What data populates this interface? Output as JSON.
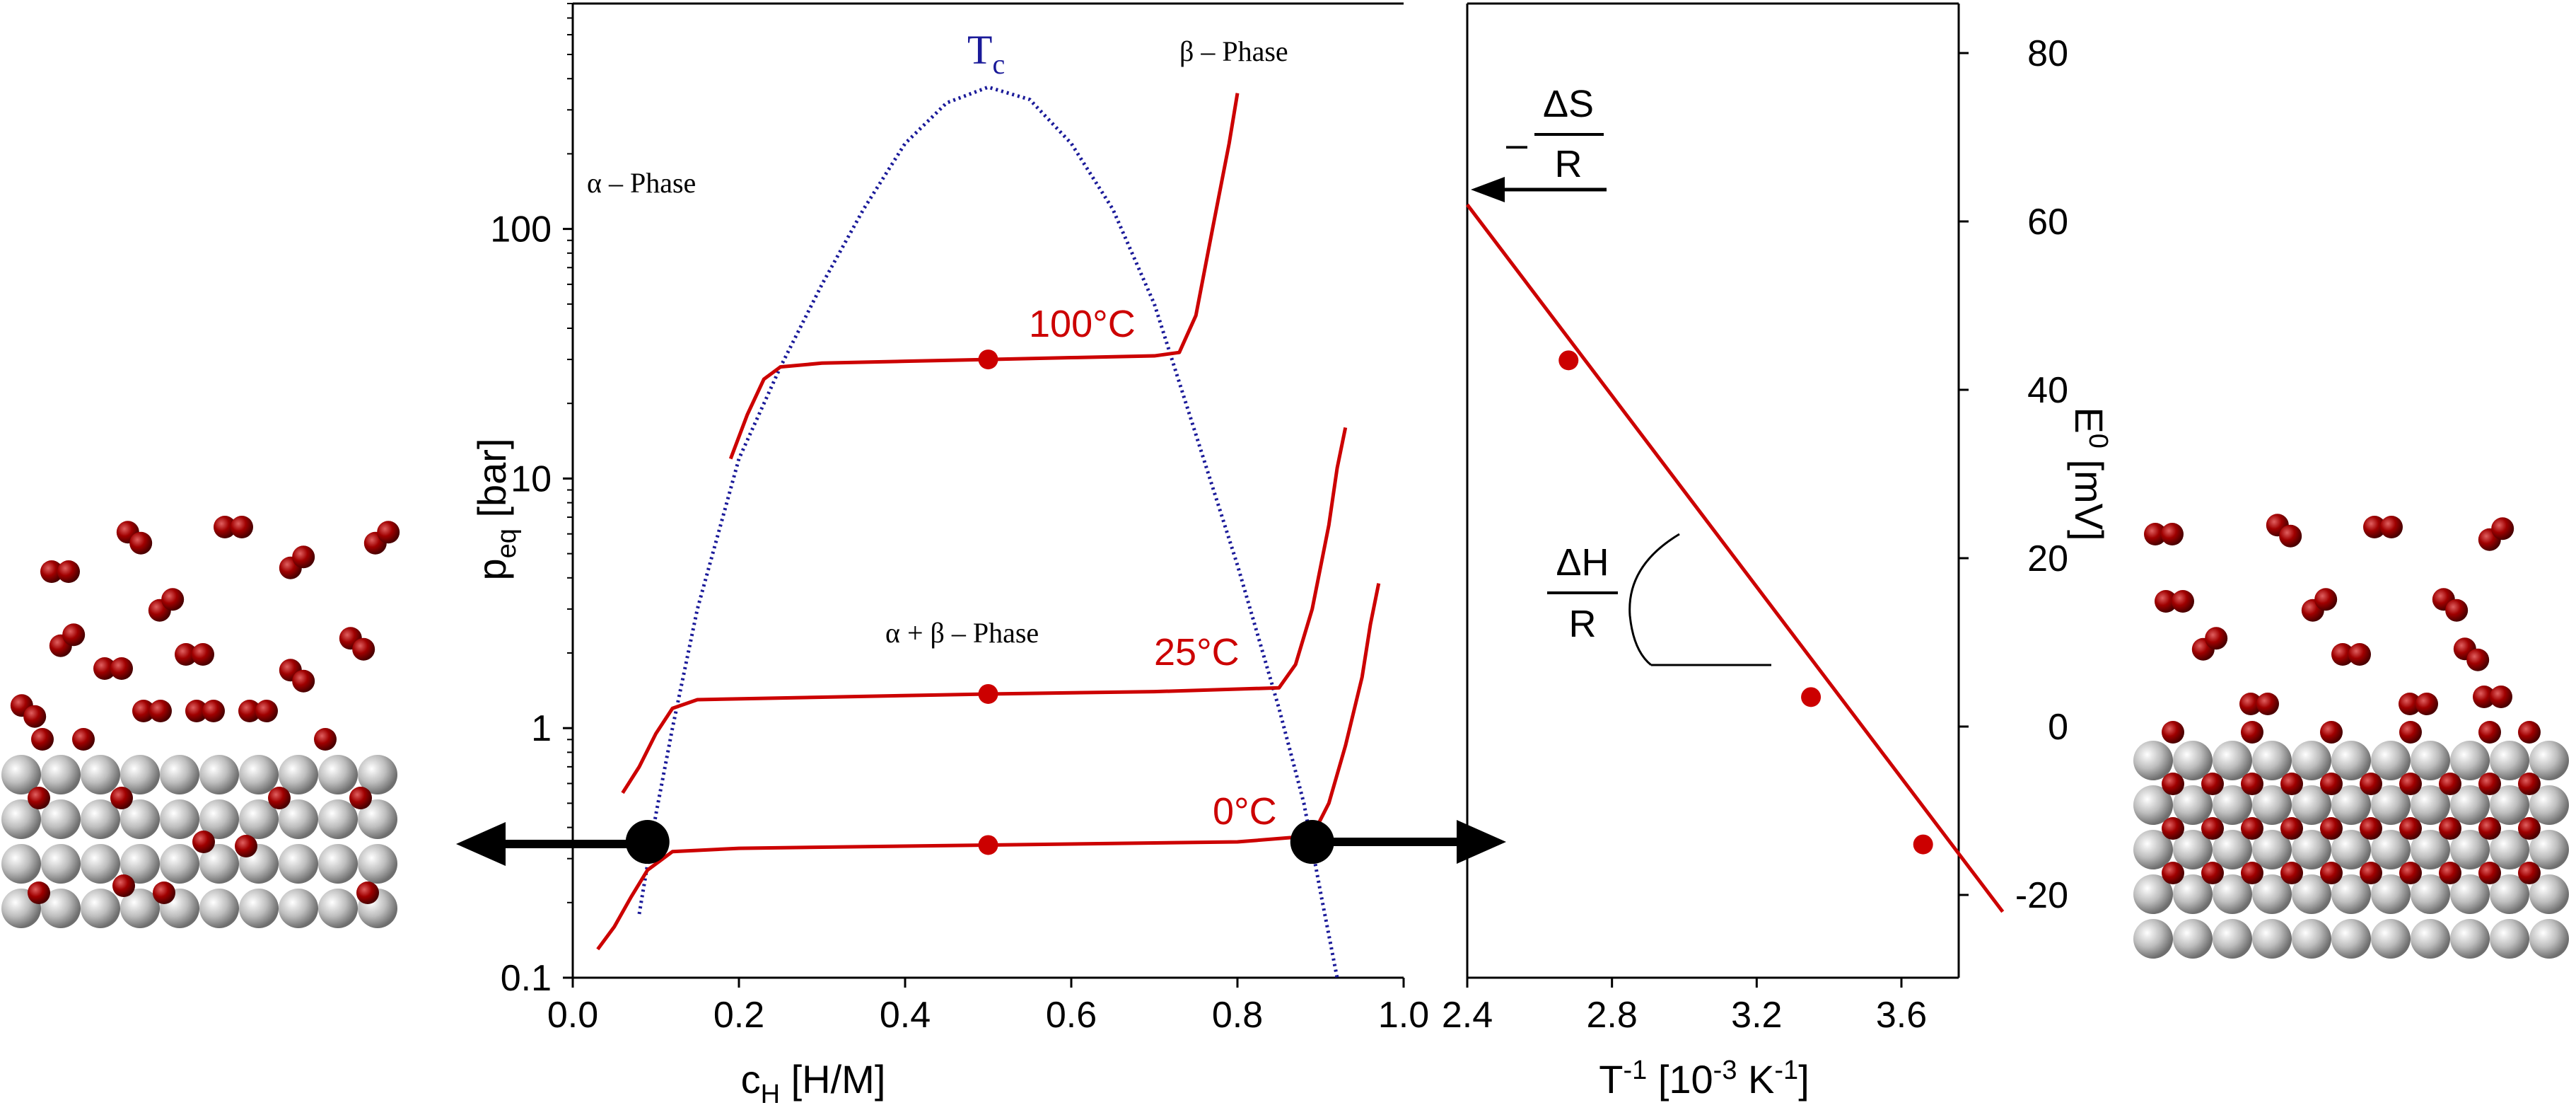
{
  "colors": {
    "isotherm": "#cc0000",
    "critical_curve": "#1a1a99",
    "arrow": "#000000",
    "host_atom": "#c0c0c0",
    "hydrogen_atom": "#8b0000"
  },
  "chart_data": [
    {
      "type": "line",
      "title": "",
      "xlabel_main": "c",
      "xlabel_sub": "H",
      "xlabel_rest": " [H/M]",
      "ylabel_main": "p",
      "ylabel_sub": "eq",
      "ylabel_rest": " [bar]",
      "xlim": [
        0.0,
        1.0
      ],
      "ylim": [
        0.1,
        800
      ],
      "yscale": "log",
      "grid": false,
      "xticks": [
        "0.0",
        "0.2",
        "0.4",
        "0.6",
        "0.8",
        "1.0"
      ],
      "yticks": [
        "0.1",
        "1",
        "10",
        "100"
      ],
      "annotations": {
        "tc_main": "T",
        "tc_sub": "c",
        "alpha_phase": "α – Phase",
        "beta_phase": "β – Phase",
        "two_phase": "α + β – Phase"
      },
      "series": [
        {
          "name": "100°C",
          "x": [
            0.19,
            0.21,
            0.23,
            0.25,
            0.3,
            0.4,
            0.5,
            0.6,
            0.7,
            0.73,
            0.75,
            0.77,
            0.79,
            0.8
          ],
          "y": [
            12,
            18,
            25,
            28,
            29,
            29.5,
            30,
            30.5,
            31,
            32,
            45,
            100,
            220,
            350
          ],
          "marker": {
            "x": 0.5,
            "y": 30
          }
        },
        {
          "name": "25°C",
          "x": [
            0.06,
            0.08,
            0.1,
            0.12,
            0.15,
            0.3,
            0.5,
            0.7,
            0.85,
            0.87,
            0.89,
            0.91,
            0.92,
            0.93
          ],
          "y": [
            0.55,
            0.7,
            0.95,
            1.2,
            1.3,
            1.33,
            1.37,
            1.4,
            1.45,
            1.8,
            3.0,
            6.5,
            11,
            16
          ],
          "marker": {
            "x": 0.5,
            "y": 1.37
          }
        },
        {
          "name": "0°C",
          "x": [
            0.03,
            0.05,
            0.07,
            0.09,
            0.12,
            0.2,
            0.5,
            0.8,
            0.89,
            0.91,
            0.93,
            0.95,
            0.96,
            0.97
          ],
          "y": [
            0.13,
            0.16,
            0.21,
            0.27,
            0.32,
            0.33,
            0.34,
            0.35,
            0.37,
            0.5,
            0.85,
            1.6,
            2.6,
            3.8
          ],
          "marker": {
            "x": 0.5,
            "y": 0.34
          }
        }
      ],
      "critical_curve": {
        "x": [
          0.08,
          0.1,
          0.12,
          0.15,
          0.2,
          0.25,
          0.3,
          0.35,
          0.4,
          0.45,
          0.5,
          0.55,
          0.6,
          0.65,
          0.7,
          0.75,
          0.8,
          0.85,
          0.88,
          0.9,
          0.92
        ],
        "y": [
          0.18,
          0.45,
          1.0,
          3.0,
          12,
          28,
          60,
          120,
          220,
          320,
          370,
          330,
          220,
          120,
          50,
          15,
          4.5,
          1.2,
          0.5,
          0.22,
          0.1
        ]
      },
      "miscibility_gap": {
        "x_alpha": 0.09,
        "x_beta": 0.89,
        "y": 0.35
      }
    },
    {
      "type": "scatter",
      "title": "",
      "xlabel_main": "T",
      "xlabel_sup": "-1",
      "xlabel_rest": " [10",
      "xlabel_sup2": "-3",
      "xlabel_rest2": " K",
      "xlabel_sup3": "-1",
      "xlabel_end": "]",
      "ylabel_main": "E",
      "ylabel_sup": "0",
      "ylabel_rest": " [mV]",
      "xlim": [
        2.4,
        3.9
      ],
      "ylim": [
        -30,
        85
      ],
      "grid": false,
      "xticks": [
        "2.4",
        "2.8",
        "3.2",
        "3.6"
      ],
      "yticks": [
        "80",
        "60",
        "40",
        "20",
        "0",
        "-20"
      ],
      "points": [
        {
          "x": 2.68,
          "y": 43.5
        },
        {
          "x": 3.35,
          "y": 3.5
        },
        {
          "x": 3.66,
          "y": -14
        }
      ],
      "fit_line": {
        "x": [
          2.4,
          3.88
        ],
        "y": [
          62,
          -22
        ]
      },
      "annotations": {
        "entropy_minus": "–",
        "entropy_num": "ΔS",
        "entropy_den": "R",
        "enthalpy_num": "ΔH",
        "enthalpy_den": "R"
      }
    }
  ]
}
